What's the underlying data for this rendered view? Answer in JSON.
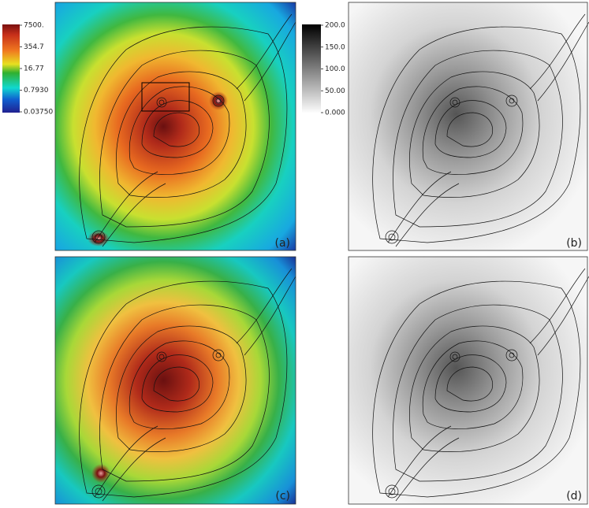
{
  "colorbar_left": {
    "labels": [
      "7500.",
      "354.7",
      "16.77",
      "0.7930",
      "0.03750"
    ]
  },
  "colorbar_right": {
    "labels": [
      "200.0",
      "150.0",
      "100.0",
      "50.00",
      "0.000"
    ]
  },
  "panels": [
    {
      "label": "(a)"
    },
    {
      "label": "(b)"
    },
    {
      "label": "(c)"
    },
    {
      "label": "(d)"
    }
  ]
}
